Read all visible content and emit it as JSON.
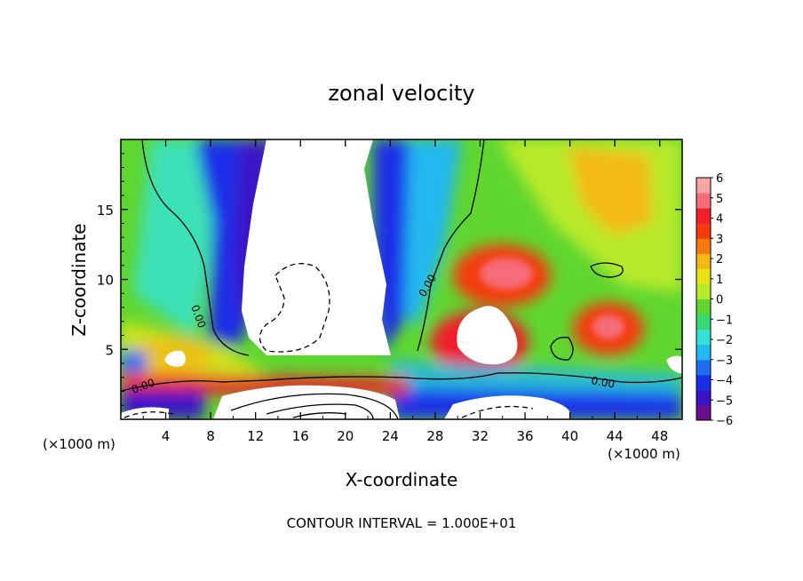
{
  "chart_data": {
    "type": "heatmap",
    "title": "zonal velocity",
    "xlabel": "X-coordinate",
    "ylabel": "Z-coordinate",
    "x_unit": "(×1000 m)",
    "x_unit_repeat": "(×1000 m)",
    "footer": "CONTOUR INTERVAL = 1.000E+01",
    "xlim": [
      0,
      50
    ],
    "ylim": [
      0,
      20
    ],
    "x_ticks": [
      4,
      8,
      12,
      16,
      20,
      24,
      28,
      32,
      36,
      40,
      44,
      48
    ],
    "y_ticks": [
      5,
      10,
      15
    ],
    "colorbar": {
      "min": -6,
      "max": 6,
      "ticks": [
        6,
        5,
        4,
        3,
        2,
        1,
        0,
        -1,
        -2,
        -3,
        -4,
        -5,
        -6
      ],
      "colors": [
        "#6a0d8f",
        "#3a14c8",
        "#1c2fe8",
        "#1f6ef2",
        "#22b8f0",
        "#33e3da",
        "#38d870",
        "#5fd630",
        "#b7ea2a",
        "#e9e515",
        "#f4b912",
        "#f77a10",
        "#f53a10",
        "#f21f2a",
        "#f66c78",
        "#f7a6a6"
      ]
    },
    "contour_labels": [
      "0.00",
      "0.00",
      "0.00",
      "0.00"
    ],
    "grid": false
  }
}
